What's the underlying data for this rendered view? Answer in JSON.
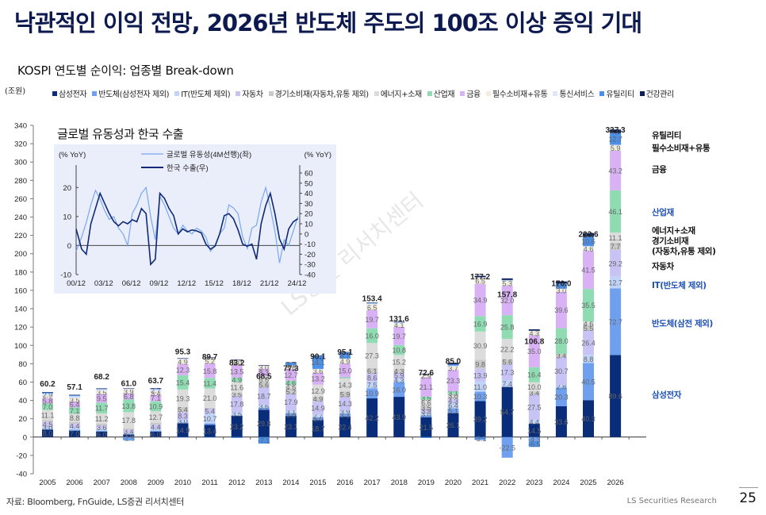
{
  "page": {
    "title": "낙관적인 이익 전망, 2026년 반도체 주도의 100조 이상 증익 기대",
    "subtitle": "KOSPI 연도별 순이익: 업종별 Break-down",
    "unit": "(조원)",
    "source": "자료: Bloomberg, FnGuide, LS증권 리서치센터",
    "brand": "LS Securities Research",
    "page_number": "25",
    "watermark": "LS증권 리서치센터"
  },
  "legend": [
    {
      "name": "삼성전자",
      "color": "#0a2d7a"
    },
    {
      "name": "반도체(삼성전자 제외)",
      "color": "#6fa0f0"
    },
    {
      "name": "IT(반도체 제외)",
      "color": "#c0d4fa"
    },
    {
      "name": "자동차",
      "color": "#c7c4f5"
    },
    {
      "name": "경기소비재(자동차,유통 제외)",
      "color": "#c9c9c9"
    },
    {
      "name": "에너지+소재",
      "color": "#dcdcdc"
    },
    {
      "name": "산업재",
      "color": "#8fdcb3"
    },
    {
      "name": "금융",
      "color": "#d9b2f5"
    },
    {
      "name": "필수소비재+유통",
      "color": "#f1eee0"
    },
    {
      "name": "통신서비스",
      "color": "#dfe6f7"
    },
    {
      "name": "유틸리티",
      "color": "#4a8fe8"
    },
    {
      "name": "건강관리",
      "color": "#0b1f5c"
    }
  ],
  "right_labels": [
    {
      "text": "유틸리티",
      "color": "#111111"
    },
    {
      "text": "필수소비재+유통",
      "color": "#111111"
    },
    {
      "text": "금융",
      "color": "#111111"
    },
    {
      "text": "산업재",
      "color": "#1c4fb5"
    },
    {
      "text": "에너지+소재",
      "color": "#111111"
    },
    {
      "text": "경기소비재",
      "color": "#111111"
    },
    {
      "text": "(자동차,유통 제외)",
      "color": "#111111"
    },
    {
      "text": "자동차",
      "color": "#111111"
    },
    {
      "text": "IT(반도체 제외)",
      "color": "#1c4fb5"
    },
    {
      "text": "반도체(삼전 제외)",
      "color": "#1c4fb5"
    },
    {
      "text": "삼성전자",
      "color": "#1c4fb5"
    }
  ],
  "inset": {
    "title": "글로벌 유동성과 한국 수출",
    "left_unit": "(% YoY)",
    "right_unit": "(% YoY)",
    "legend": [
      {
        "name": "글로벌 유동성(4M선행)(좌)",
        "color": "#7aa7ef"
      },
      {
        "name": "한국 수출(우)",
        "color": "#102a78"
      }
    ]
  },
  "chart_data": [
    {
      "type": "bar",
      "stacked": true,
      "title": "KOSPI 연도별 순이익: 업종별 Break-down",
      "ylabel": "(조원)",
      "ylim": [
        -40,
        340
      ],
      "yticks": [
        -40,
        -20,
        0,
        20,
        40,
        60,
        80,
        100,
        120,
        140,
        160,
        180,
        200,
        220,
        240,
        260,
        280,
        300,
        320,
        340
      ],
      "categories": [
        "2005",
        "2006",
        "2007",
        "2008",
        "2009",
        "2010",
        "2011",
        "2012",
        "2013",
        "2014",
        "2015",
        "2016",
        "2017",
        "2018",
        "2019",
        "2020",
        "2021",
        "2022",
        "2023",
        "2024",
        "2025",
        "2026"
      ],
      "totals": [
        60.2,
        57.1,
        68.2,
        61.0,
        63.7,
        95.3,
        89.7,
        83.2,
        68.5,
        77.3,
        90.1,
        95.1,
        153.4,
        131.6,
        72.6,
        85.0,
        177.2,
        157.8,
        106.8,
        170.0,
        223.6,
        337.3
      ],
      "series": [
        {
          "name": "삼성전자",
          "values": [
            8.0,
            7.0,
            6.0,
            3.0,
            6.0,
            14.9,
            13.4,
            23.2,
            29.8,
            23.1,
            18.7,
            22.4,
            42.2,
            43.9,
            21.5,
            26.1,
            39.2,
            54.7,
            14.5,
            33.6,
            40.3,
            89.6
          ]
        },
        {
          "name": "반도체(삼성전자 제외)",
          "values": [
            1.0,
            1.0,
            1.0,
            -2.5,
            1.0,
            1.0,
            1.5,
            0.5,
            2.0,
            3.0,
            3.0,
            3.1,
            10.9,
            16.0,
            2.2,
            5.1,
            10.3,
            -22.5,
            -4.3,
            20.3,
            40.5,
            72.7
          ]
        },
        {
          "name": "IT(반도체 제외)",
          "values": [
            3.0,
            2.0,
            2.0,
            1.5,
            2.0,
            3.0,
            10.7,
            3.5,
            3.6,
            3.1,
            2.7,
            3.9,
            7.5,
            4.3,
            3.0,
            6.4,
            11.0,
            7.4,
            4.4,
            2.8,
            8.8,
            12.7
          ]
        },
        {
          "name": "자동차",
          "values": [
            4.5,
            4.4,
            3.6,
            3.4,
            4.4,
            8.3,
            5.4,
            17.8,
            18.7,
            17.9,
            14.9,
            14.3,
            8.6,
            5.9,
            3.9,
            4.3,
            13.9,
            17.3,
            27.5,
            30.7,
            26.4,
            29.2
          ]
        },
        {
          "name": "경기소비재(자동차,유통 제외)",
          "values": [
            2.0,
            2.2,
            2.0,
            1.5,
            2.0,
            5.4,
            1.0,
            3.5,
            5.6,
            5.2,
            4.9,
            5.9,
            6.1,
            4.3,
            3.5,
            2.0,
            9.8,
            5.6,
            3.4,
            3.4,
            5.5,
            7.7
          ]
        },
        {
          "name": "에너지+소재",
          "values": [
            11.1,
            8.8,
            11.2,
            17.8,
            12.7,
            19.3,
            21.0,
            11.6,
            6.6,
            4.6,
            12.9,
            14.3,
            27.3,
            15.2,
            6.6,
            3.0,
            30.9,
            22.2,
            10.0,
            0.0,
            4.6,
            11.1
          ]
        },
        {
          "name": "산업재",
          "values": [
            7.0,
            7.1,
            11.7,
            13.8,
            10.9,
            15.4,
            11.4,
            4.9,
            0.0,
            4.6,
            0.0,
            1.3,
            16.0,
            10.8,
            3.5,
            3.1,
            16.9,
            25.8,
            16.4,
            28.0,
            35.5,
            46.1
          ]
        },
        {
          "name": "금융",
          "values": [
            5.8,
            6.4,
            9.5,
            6.8,
            7.1,
            12.3,
            15.8,
            13.5,
            8.3,
            12.7,
            13.2,
            15.0,
            19.7,
            19.7,
            21.1,
            23.3,
            34.9,
            32.0,
            35.0,
            39.6,
            41.5,
            43.2
          ]
        },
        {
          "name": "필수소비재+유통",
          "values": [
            2.3,
            3.5,
            3.5,
            3.9,
            3.4,
            4.9,
            5.2,
            5.0,
            3.0,
            3.6,
            3.6,
            4.9,
            6.5,
            4.1,
            2.9,
            3.7,
            6.5,
            5.3,
            4.3,
            3.0,
            4.6,
            5.9
          ]
        },
        {
          "name": "통신서비스",
          "values": [
            2.9,
            2.2,
            1.6,
            1.0,
            2.7,
            1.0,
            1.0,
            0.6,
            0.4,
            0.5,
            0.5,
            0.5,
            0.9,
            0.8,
            0.4,
            0.9,
            1.0,
            0.8,
            0.5,
            0.5,
            0.6,
            0.6
          ]
        },
        {
          "name": "유틸리티",
          "values": [
            1.0,
            1.0,
            0.5,
            -1.0,
            0.5,
            -0.2,
            -0.5,
            -1.0,
            -7.1,
            2.7,
            14.1,
            6.7,
            0.5,
            0.3,
            -1.0,
            1.5,
            -3.1,
            0.3,
            -6.5,
            5.7,
            10.6,
            12.7
          ]
        },
        {
          "name": "건강관리",
          "values": [
            0.5,
            0.5,
            0.5,
            0.5,
            0.5,
            0.5,
            0.5,
            0.5,
            0.5,
            0.5,
            0.5,
            0.5,
            0.5,
            0.5,
            0.5,
            1.5,
            1.5,
            1.7,
            1.5,
            2.2,
            3.5,
            4.0
          ]
        }
      ]
    },
    {
      "type": "line",
      "title": "글로벌 유동성과 한국 수출",
      "x_ticks": [
        "00/12",
        "03/12",
        "06/12",
        "09/12",
        "12/12",
        "15/12",
        "18/12",
        "21/12",
        "24/12"
      ],
      "y_left": {
        "label": "(% YoY)",
        "ylim": [
          -10,
          25
        ],
        "ticks": [
          -10,
          0,
          10,
          20
        ]
      },
      "y_right": {
        "label": "(% YoY)",
        "ylim": [
          -40,
          60
        ],
        "ticks": [
          -40,
          -30,
          -20,
          -10,
          0,
          10,
          20,
          30,
          40,
          50,
          60
        ]
      },
      "series": [
        {
          "name": "글로벌 유동성(4M선행)(좌)",
          "axis": "left",
          "x": [
            2000.9,
            2001.5,
            2002.0,
            2002.5,
            2003.0,
            2003.5,
            2004.0,
            2004.5,
            2005.0,
            2005.5,
            2006.0,
            2006.5,
            2007.0,
            2007.5,
            2008.0,
            2008.5,
            2009.0,
            2009.5,
            2010.0,
            2010.5,
            2011.0,
            2011.5,
            2012.0,
            2012.5,
            2013.0,
            2013.5,
            2014.0,
            2014.5,
            2015.0,
            2015.5,
            2016.0,
            2016.5,
            2017.0,
            2017.5,
            2018.0,
            2018.5,
            2019.0,
            2019.5,
            2020.0,
            2020.5,
            2021.0,
            2021.5,
            2022.0,
            2022.5,
            2023.0,
            2023.5,
            2024.0,
            2024.5,
            2025.0
          ],
          "values": [
            -2,
            3,
            8,
            14,
            19,
            16,
            12,
            9,
            10,
            6,
            4,
            0,
            11,
            14,
            18,
            20,
            10,
            2,
            17,
            14,
            10,
            6,
            4,
            7,
            5,
            4,
            6,
            5,
            3,
            -2,
            0,
            4,
            6,
            14,
            13,
            11,
            3,
            -1,
            6,
            7,
            15,
            20,
            13,
            5,
            -6,
            2,
            0,
            5,
            10
          ]
        },
        {
          "name": "한국 수출(우)",
          "axis": "right",
          "x": [
            2000.9,
            2001.5,
            2002.0,
            2002.5,
            2003.0,
            2003.5,
            2004.0,
            2004.5,
            2005.0,
            2005.5,
            2006.0,
            2006.5,
            2007.0,
            2007.5,
            2008.0,
            2008.5,
            2009.0,
            2009.5,
            2010.0,
            2010.5,
            2011.0,
            2011.5,
            2012.0,
            2012.5,
            2013.0,
            2013.5,
            2014.0,
            2014.5,
            2015.0,
            2015.5,
            2016.0,
            2016.5,
            2017.0,
            2017.5,
            2018.0,
            2018.5,
            2019.0,
            2019.5,
            2020.0,
            2020.5,
            2021.0,
            2021.5,
            2022.0,
            2022.5,
            2023.0,
            2023.5,
            2024.0,
            2024.5,
            2025.0
          ],
          "values": [
            5,
            -15,
            -20,
            10,
            25,
            40,
            30,
            20,
            12,
            8,
            12,
            10,
            14,
            12,
            25,
            20,
            -30,
            -25,
            40,
            35,
            25,
            18,
            0,
            5,
            2,
            4,
            3,
            1,
            -10,
            -15,
            -12,
            0,
            18,
            20,
            15,
            4,
            -10,
            -12,
            -10,
            -25,
            10,
            28,
            40,
            20,
            -5,
            -15,
            5,
            12,
            15
          ]
        }
      ]
    }
  ]
}
